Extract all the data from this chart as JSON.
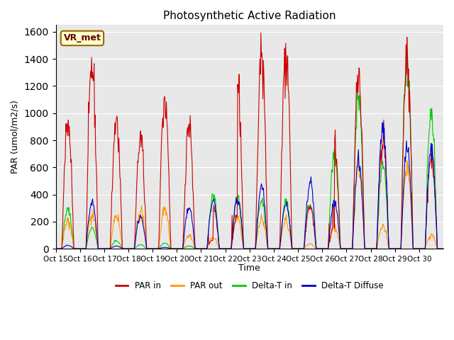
{
  "title": "Photosynthetic Active Radiation",
  "ylabel": "PAR (umol/m2/s)",
  "xlabel": "Time",
  "annotation": "VR_met",
  "ylim": [
    0,
    1650
  ],
  "yticks": [
    0,
    200,
    400,
    600,
    800,
    1000,
    1200,
    1400,
    1600
  ],
  "xtick_labels": [
    "Oct 15",
    "Oct 16",
    "Oct 17",
    "Oct 18",
    "Oct 19",
    "Oct 20",
    "Oct 21",
    "Oct 22",
    "Oct 23",
    "Oct 24",
    "Oct 25",
    "Oct 26",
    "Oct 27",
    "Oct 28",
    "Oct 29",
    "Oct 30"
  ],
  "colors": {
    "PAR_in": "#cc0000",
    "PAR_out": "#ff9900",
    "Delta_T_in": "#00cc00",
    "Delta_T_Diffuse": "#0000cc"
  },
  "legend_labels": [
    "PAR in",
    "PAR out",
    "Delta-T in",
    "Delta-T Diffuse"
  ],
  "background_color": "#e8e8e8",
  "annotation_bg": "#ffffcc",
  "annotation_border": "#996600"
}
